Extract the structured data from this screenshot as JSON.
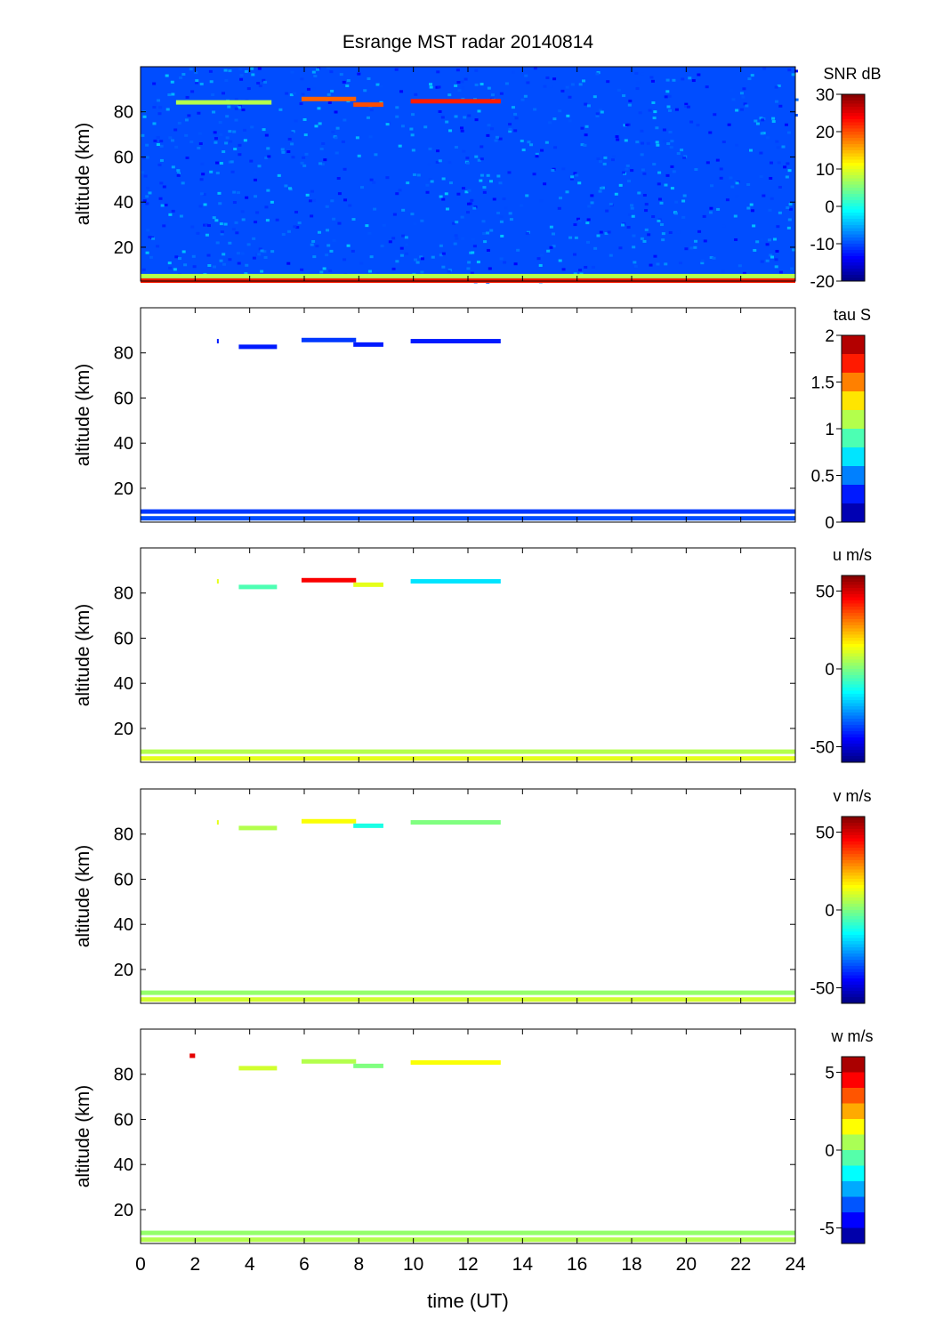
{
  "figure": {
    "title": "Esrange MST radar 20140814",
    "xlabel": "time (UT)",
    "ylabel": "altitude (km)"
  },
  "chart_data": [
    {
      "type": "heatmap",
      "panel": "snr",
      "colorbar_label": "SNR dB",
      "colorbar_ticks": [
        "30",
        "20",
        "10",
        "0",
        "-10",
        "-20"
      ],
      "colorbar_values": [
        30,
        20,
        10,
        0,
        -10,
        -20
      ],
      "clim": [
        -20,
        30
      ],
      "colormap": "jet-continuous",
      "ylabel": "altitude (km)",
      "yticks": [
        20,
        40,
        60,
        80
      ],
      "ylim": [
        5,
        100
      ],
      "xlim": [
        0,
        24
      ],
      "background": "noise",
      "features": [
        {
          "t0": 1.3,
          "t1": 4.8,
          "alt": 84,
          "level": 0.55
        },
        {
          "t0": 5.9,
          "t1": 7.9,
          "alt": 85.5,
          "level": 0.78
        },
        {
          "t0": 7.8,
          "t1": 8.9,
          "alt": 83,
          "level": 0.8
        },
        {
          "t0": 9.9,
          "t1": 13.2,
          "alt": 84.5,
          "level": 0.85
        },
        {
          "t0": 0,
          "t1": 24,
          "alt": 7,
          "level": 0.55
        },
        {
          "t0": 0,
          "t1": 24,
          "alt": 5,
          "level": 0.85
        }
      ]
    },
    {
      "type": "heatmap",
      "panel": "tau",
      "colorbar_label": "tau S",
      "colorbar_ticks": [
        "2",
        "1.5",
        "1",
        "0.5",
        "0"
      ],
      "colorbar_values": [
        2,
        1.5,
        1,
        0.5,
        0
      ],
      "clim": [
        0,
        2
      ],
      "colormap": "jet-10-steps",
      "ylabel": "altitude (km)",
      "yticks": [
        20,
        40,
        60,
        80
      ],
      "ylim": [
        5,
        100
      ],
      "xlim": [
        0,
        24
      ],
      "features": [
        {
          "t0": 2.8,
          "t1": 2.85,
          "alt": 85,
          "level": 0.15
        },
        {
          "t0": 3.6,
          "t1": 5.0,
          "alt": 82.5,
          "level": 0.15
        },
        {
          "t0": 5.9,
          "t1": 7.9,
          "alt": 85.5,
          "level": 0.18
        },
        {
          "t0": 7.8,
          "t1": 8.9,
          "alt": 83.5,
          "level": 0.15
        },
        {
          "t0": 9.9,
          "t1": 13.2,
          "alt": 85,
          "level": 0.15
        },
        {
          "t0": 0,
          "t1": 24,
          "alt": 9.5,
          "level": 0.18
        },
        {
          "t0": 0,
          "t1": 24,
          "alt": 6.5,
          "level": 0.2
        }
      ]
    },
    {
      "type": "heatmap",
      "panel": "u",
      "colorbar_label": "u m/s",
      "colorbar_ticks": [
        "50",
        "0",
        "-50"
      ],
      "colorbar_values": [
        50,
        0,
        -50
      ],
      "clim": [
        -60,
        60
      ],
      "colormap": "jet-continuous",
      "ylabel": "altitude (km)",
      "yticks": [
        20,
        40,
        60,
        80
      ],
      "ylim": [
        5,
        100
      ],
      "xlim": [
        0,
        24
      ],
      "features": [
        {
          "t0": 2.8,
          "t1": 2.85,
          "alt": 85,
          "level": 0.6
        },
        {
          "t0": 3.6,
          "t1": 5.0,
          "alt": 82.5,
          "level": 0.45
        },
        {
          "t0": 5.9,
          "t1": 7.9,
          "alt": 85.5,
          "level": 0.88
        },
        {
          "t0": 7.8,
          "t1": 8.9,
          "alt": 83.5,
          "level": 0.6
        },
        {
          "t0": 9.9,
          "t1": 13.2,
          "alt": 85,
          "level": 0.35
        },
        {
          "t0": 0,
          "t1": 24,
          "alt": 9.5,
          "level": 0.55
        },
        {
          "t0": 0,
          "t1": 24,
          "alt": 6.5,
          "level": 0.6
        }
      ]
    },
    {
      "type": "heatmap",
      "panel": "v",
      "colorbar_label": "v m/s",
      "colorbar_ticks": [
        "50",
        "0",
        "-50"
      ],
      "colorbar_values": [
        50,
        0,
        -50
      ],
      "clim": [
        -60,
        60
      ],
      "colormap": "jet-continuous",
      "ylabel": "altitude (km)",
      "yticks": [
        20,
        40,
        60,
        80
      ],
      "ylim": [
        5,
        100
      ],
      "xlim": [
        0,
        24
      ],
      "features": [
        {
          "t0": 2.8,
          "t1": 2.85,
          "alt": 85,
          "level": 0.6
        },
        {
          "t0": 3.6,
          "t1": 5.0,
          "alt": 82.5,
          "level": 0.55
        },
        {
          "t0": 5.9,
          "t1": 7.9,
          "alt": 85.5,
          "level": 0.62
        },
        {
          "t0": 7.8,
          "t1": 8.9,
          "alt": 83.5,
          "level": 0.4
        },
        {
          "t0": 9.9,
          "t1": 13.2,
          "alt": 85,
          "level": 0.5
        },
        {
          "t0": 0,
          "t1": 24,
          "alt": 9.5,
          "level": 0.52
        },
        {
          "t0": 0,
          "t1": 24,
          "alt": 6.5,
          "level": 0.58
        }
      ]
    },
    {
      "type": "heatmap",
      "panel": "w",
      "colorbar_label": "w m/s",
      "colorbar_ticks": [
        "5",
        "0",
        "-5"
      ],
      "colorbar_values": [
        5,
        0,
        -5
      ],
      "clim": [
        -6,
        6
      ],
      "colormap": "jet-12-steps",
      "ylabel": "altitude (km)",
      "yticks": [
        20,
        40,
        60,
        80
      ],
      "ylim": [
        5,
        100
      ],
      "xlim": [
        0,
        24
      ],
      "xlabel": "time (UT)",
      "xticks": [
        0,
        2,
        4,
        6,
        8,
        10,
        12,
        14,
        16,
        18,
        20,
        22,
        24
      ],
      "features": [
        {
          "t0": 1.8,
          "t1": 2.0,
          "alt": 88,
          "level": 0.9
        },
        {
          "t0": 3.6,
          "t1": 5.0,
          "alt": 82.5,
          "level": 0.58
        },
        {
          "t0": 5.9,
          "t1": 7.9,
          "alt": 85.5,
          "level": 0.55
        },
        {
          "t0": 7.8,
          "t1": 8.9,
          "alt": 83.5,
          "level": 0.5
        },
        {
          "t0": 9.9,
          "t1": 13.2,
          "alt": 85,
          "level": 0.62
        },
        {
          "t0": 0,
          "t1": 24,
          "alt": 9.5,
          "level": 0.52
        },
        {
          "t0": 0,
          "t1": 24,
          "alt": 6.5,
          "level": 0.55
        }
      ]
    }
  ]
}
